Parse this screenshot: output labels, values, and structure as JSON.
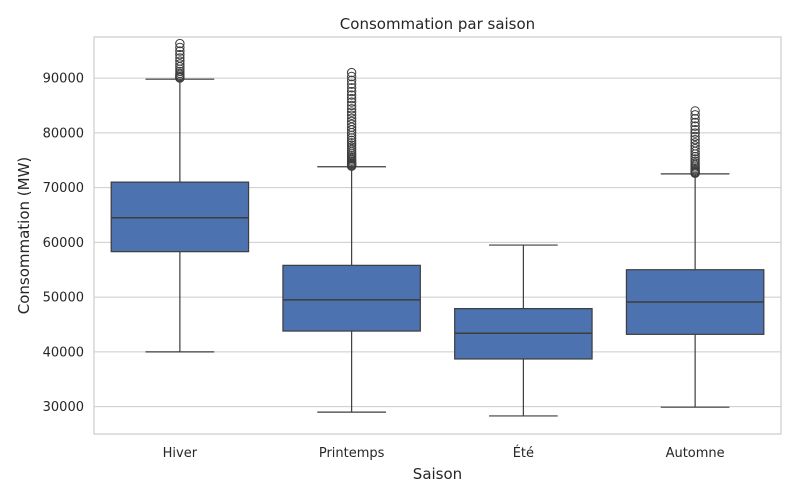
{
  "chart_data": {
    "type": "box",
    "title": "Consommation par saison",
    "xlabel": "Saison",
    "ylabel": "Consommation (MW)",
    "ylim": [
      25000,
      97500
    ],
    "yticks": [
      30000,
      40000,
      50000,
      60000,
      70000,
      80000,
      90000
    ],
    "grid": true,
    "color": "#4c72b0",
    "categories": [
      "Hiver",
      "Printemps",
      "Été",
      "Automne"
    ],
    "boxes": [
      {
        "category": "Hiver",
        "whisker_low": 40000,
        "q1": 58300,
        "median": 64500,
        "q3": 71000,
        "whisker_high": 89800,
        "outliers_min": 90000,
        "outliers_max": 96300
      },
      {
        "category": "Printemps",
        "whisker_low": 29000,
        "q1": 43800,
        "median": 49500,
        "q3": 55800,
        "whisker_high": 73800,
        "outliers_min": 73900,
        "outliers_max": 91000
      },
      {
        "category": "Été",
        "whisker_low": 28300,
        "q1": 38700,
        "median": 43400,
        "q3": 47900,
        "whisker_high": 59500,
        "outliers_min": null,
        "outliers_max": null
      },
      {
        "category": "Automne",
        "whisker_low": 29900,
        "q1": 43200,
        "median": 49100,
        "q3": 55000,
        "whisker_high": 72500,
        "outliers_min": 72600,
        "outliers_max": 84000
      }
    ]
  }
}
